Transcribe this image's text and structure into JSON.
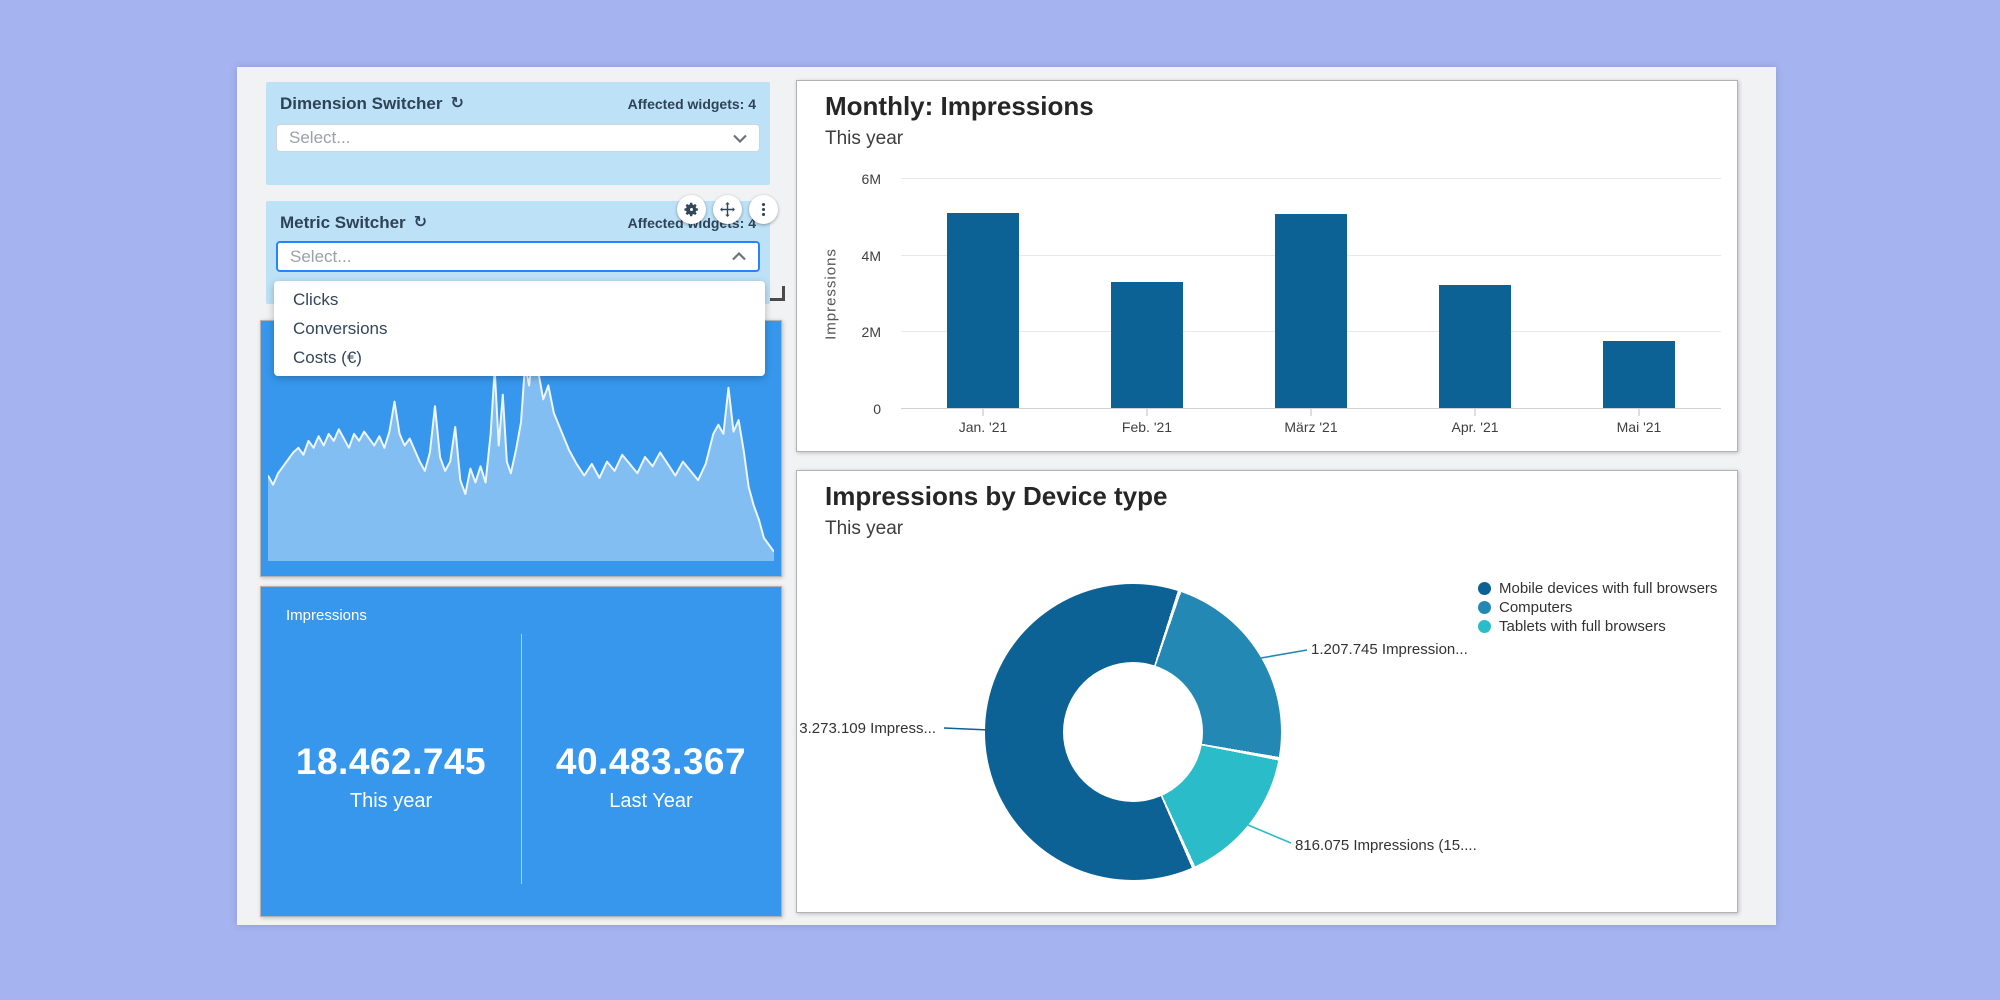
{
  "colors": {
    "page_bg": "#a6b3f1",
    "canvas_bg": "#f1f2f4",
    "switcher_bg": "#bde2f8",
    "focus_border": "#2684ff",
    "blue_widget": "#3797ec",
    "header_text": "#2e4357"
  },
  "dimension_switcher": {
    "title": "Dimension Switcher",
    "affected_label": "Affected widgets: 4",
    "placeholder": "Select..."
  },
  "metric_switcher": {
    "title": "Metric Switcher",
    "affected_label": "Affected widgets: 4",
    "placeholder": "Select...",
    "options": [
      "Clicks",
      "Conversions",
      "Costs (€)"
    ]
  },
  "toolbar": {
    "buttons": [
      "settings",
      "move",
      "more-options"
    ]
  },
  "kpi": {
    "title": "Impressions",
    "metrics": [
      {
        "value": "18.462.745",
        "label": "This year"
      },
      {
        "value": "40.483.367",
        "label": "Last Year"
      }
    ]
  },
  "chart_data": [
    {
      "type": "bar",
      "title": "Monthly: Impressions",
      "subtitle": "This year",
      "ylabel": "Impressions",
      "categories": [
        "Jan. '21",
        "Feb. '21",
        "März '21",
        "Apr. '21",
        "Mai '21"
      ],
      "values": [
        5100000,
        3300000,
        5050000,
        3200000,
        1750000
      ],
      "yticks": [
        "0",
        "2M",
        "4M",
        "6M"
      ],
      "ylim": [
        0,
        6000000
      ],
      "bar_color": "#0c6295",
      "grid": true,
      "legend_position": "none"
    },
    {
      "type": "pie",
      "title": "Impressions by Device type",
      "subtitle": "This year",
      "legend_position": "right",
      "start_angle": 19,
      "inner_radius_ratio": 0.47,
      "series": [
        {
          "name": "Mobile devices with full browsers",
          "value": 3273109,
          "color": "#0c6295",
          "callout": "3.273.109 Impress..."
        },
        {
          "name": "Computers",
          "value": 1207745,
          "color": "#2488b4",
          "callout": "1.207.745 Impression..."
        },
        {
          "name": "Tablets with full browsers",
          "value": 816075,
          "color": "#2bbcc9",
          "callout": "816.075 Impressions (15...."
        }
      ]
    },
    {
      "type": "area",
      "title": "",
      "points": [
        [
          0,
          63
        ],
        [
          1,
          67
        ],
        [
          2,
          62
        ],
        [
          3,
          59
        ],
        [
          4,
          56
        ],
        [
          5,
          53
        ],
        [
          6,
          51
        ],
        [
          7,
          54
        ],
        [
          8,
          48
        ],
        [
          9,
          51
        ],
        [
          10,
          46
        ],
        [
          11,
          50
        ],
        [
          12,
          45
        ],
        [
          13,
          48
        ],
        [
          14,
          43
        ],
        [
          15,
          47
        ],
        [
          16,
          51
        ],
        [
          17,
          45
        ],
        [
          18,
          48
        ],
        [
          19,
          44
        ],
        [
          20,
          47
        ],
        [
          21,
          50
        ],
        [
          22,
          46
        ],
        [
          23,
          51
        ],
        [
          24,
          44
        ],
        [
          25,
          31
        ],
        [
          26,
          45
        ],
        [
          27,
          50
        ],
        [
          28,
          47
        ],
        [
          29,
          52
        ],
        [
          30,
          57
        ],
        [
          31,
          61
        ],
        [
          32,
          53
        ],
        [
          33,
          33
        ],
        [
          34,
          55
        ],
        [
          35,
          61
        ],
        [
          36,
          57
        ],
        [
          37,
          42
        ],
        [
          38,
          65
        ],
        [
          39,
          71
        ],
        [
          40,
          60
        ],
        [
          41,
          66
        ],
        [
          42,
          59
        ],
        [
          43,
          66
        ],
        [
          44,
          45
        ],
        [
          44.8,
          17
        ],
        [
          45.6,
          50
        ],
        [
          46.4,
          28
        ],
        [
          47.2,
          57
        ],
        [
          48,
          62
        ],
        [
          49,
          52
        ],
        [
          50,
          40
        ],
        [
          50.8,
          15
        ],
        [
          51.6,
          24
        ],
        [
          52.4,
          8
        ],
        [
          53.4,
          18
        ],
        [
          54.4,
          30
        ],
        [
          55.4,
          24
        ],
        [
          56.5,
          36
        ],
        [
          58,
          44
        ],
        [
          59.5,
          52
        ],
        [
          61,
          58
        ],
        [
          62.5,
          63
        ],
        [
          64,
          58
        ],
        [
          65.5,
          64
        ],
        [
          67,
          57
        ],
        [
          68.5,
          61
        ],
        [
          70,
          54
        ],
        [
          71.5,
          58
        ],
        [
          73,
          62
        ],
        [
          74.5,
          55
        ],
        [
          76,
          59
        ],
        [
          77.5,
          53
        ],
        [
          79,
          58
        ],
        [
          80.5,
          63
        ],
        [
          82,
          57
        ],
        [
          83.5,
          61
        ],
        [
          85,
          65
        ],
        [
          86.5,
          58
        ],
        [
          88,
          45
        ],
        [
          89,
          41
        ],
        [
          90,
          45
        ],
        [
          91,
          25
        ],
        [
          92,
          44
        ],
        [
          93,
          39
        ],
        [
          94,
          52
        ],
        [
          95,
          68
        ],
        [
          96,
          76
        ],
        [
          97,
          82
        ],
        [
          98,
          90
        ],
        [
          99,
          93
        ],
        [
          100,
          96
        ]
      ]
    }
  ]
}
